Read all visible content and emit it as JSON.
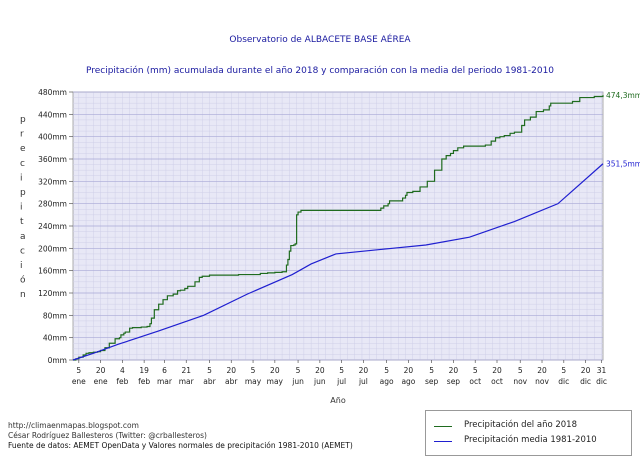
{
  "title": "Observatorio de ALBACETE BASE AÉREA",
  "subtitle": "Precipitación (mm) acumulada durante el año 2018 y comparación con la media del periodo 1981-2010",
  "footer": {
    "line1": "http://climaenmapas.blogspot.com",
    "line2": "César Rodríguez Ballesteros (Twitter: @crballesteros)",
    "line3": "Fuente de datos: AEMET OpenData y Valores normales de precipitación 1981-2010 (AEMET)"
  },
  "legend": {
    "series1": "Precipitación del año 2018",
    "series2": "Precipitación media 1981-2010"
  },
  "colors": {
    "series2018": "#1f6b1f",
    "seriesMean": "#1f1fd0",
    "plotBg": "#e8e8f6",
    "grid": "#b8b8dc",
    "title": "#1a1aa0"
  },
  "chart_data": {
    "type": "line",
    "title": "Precipitación (mm) acumulada durante el año 2018 y comparación con la media del periodo 1981-2010",
    "xlabel": "Año",
    "ylabel": "precipitación",
    "ylim": [
      0,
      480
    ],
    "yticks": [
      "0mm",
      "40mm",
      "80mm",
      "120mm",
      "160mm",
      "200mm",
      "240mm",
      "280mm",
      "320mm",
      "360mm",
      "400mm",
      "440mm",
      "480mm"
    ],
    "xlim": [
      1,
      366
    ],
    "xtick_days": [
      5,
      20,
      35,
      50,
      64,
      79,
      95,
      110,
      125,
      140,
      156,
      171,
      186,
      201,
      217,
      232,
      248,
      263,
      278,
      293,
      309,
      324,
      339,
      354,
      365
    ],
    "xtick_numbers": [
      "5",
      "20",
      "4",
      "19",
      "6",
      "21",
      "5",
      "20",
      "5",
      "20",
      "5",
      "20",
      "5",
      "20",
      "5",
      "20",
      "5",
      "20",
      "5",
      "20",
      "5",
      "20",
      "5",
      "20",
      "31"
    ],
    "xtick_months": [
      "ene",
      "ene",
      "feb",
      "feb",
      "mar",
      "mar",
      "abr",
      "abr",
      "may",
      "may",
      "jun",
      "jun",
      "jul",
      "jul",
      "ago",
      "ago",
      "sep",
      "sep",
      "oct",
      "oct",
      "nov",
      "nov",
      "dic",
      "dic",
      "dic"
    ],
    "grid": true,
    "legend_position": "bottom-right",
    "end_labels": [
      "474,3mm",
      "351,5mm"
    ],
    "series": [
      {
        "name": "Precipitación del año 2018",
        "x": [
          1,
          3,
          5,
          8,
          10,
          12,
          15,
          18,
          20,
          23,
          26,
          30,
          33,
          34,
          36,
          37,
          40,
          42,
          45,
          48,
          52,
          54,
          55,
          57,
          60,
          63,
          66,
          70,
          73,
          75,
          78,
          80,
          85,
          88,
          90,
          95,
          100,
          105,
          110,
          115,
          130,
          135,
          140,
          145,
          148,
          149,
          150,
          151,
          153,
          154,
          155,
          156,
          158,
          200,
          210,
          213,
          215,
          218,
          219,
          228,
          230,
          231,
          234,
          235,
          240,
          245,
          250,
          255,
          258,
          261,
          263,
          266,
          270,
          273,
          276,
          280,
          282,
          285,
          289,
          292,
          295,
          298,
          302,
          305,
          310,
          312,
          316,
          320,
          325,
          329,
          330,
          345,
          350,
          360,
          366
        ],
        "y": [
          0,
          2,
          5,
          9,
          12,
          13,
          14,
          15,
          17,
          22,
          30,
          38,
          40,
          45,
          48,
          50,
          57,
          58,
          58,
          59,
          60,
          65,
          75,
          90,
          100,
          108,
          115,
          118,
          124,
          125,
          128,
          132,
          140,
          148,
          150,
          152,
          152,
          152,
          152,
          153,
          155,
          156,
          157,
          158,
          170,
          180,
          195,
          205,
          206,
          208,
          260,
          265,
          268,
          268,
          268,
          272,
          276,
          280,
          285,
          290,
          295,
          300,
          300,
          302,
          310,
          320,
          340,
          360,
          366,
          370,
          375,
          380,
          383,
          383,
          383,
          383,
          383,
          385,
          392,
          398,
          400,
          402,
          406,
          408,
          420,
          430,
          435,
          445,
          448,
          455,
          460,
          463,
          470,
          472,
          474.3
        ]
      },
      {
        "name": "Precipitación media 1981-2010",
        "x": [
          1,
          15,
          32,
          60,
          91,
          121,
          152,
          165,
          182,
          213,
          244,
          274,
          305,
          335,
          366
        ],
        "y": [
          0,
          12,
          28,
          52,
          80,
          118,
          153,
          172,
          190,
          198,
          206,
          220,
          248,
          280,
          351.5
        ]
      }
    ]
  }
}
